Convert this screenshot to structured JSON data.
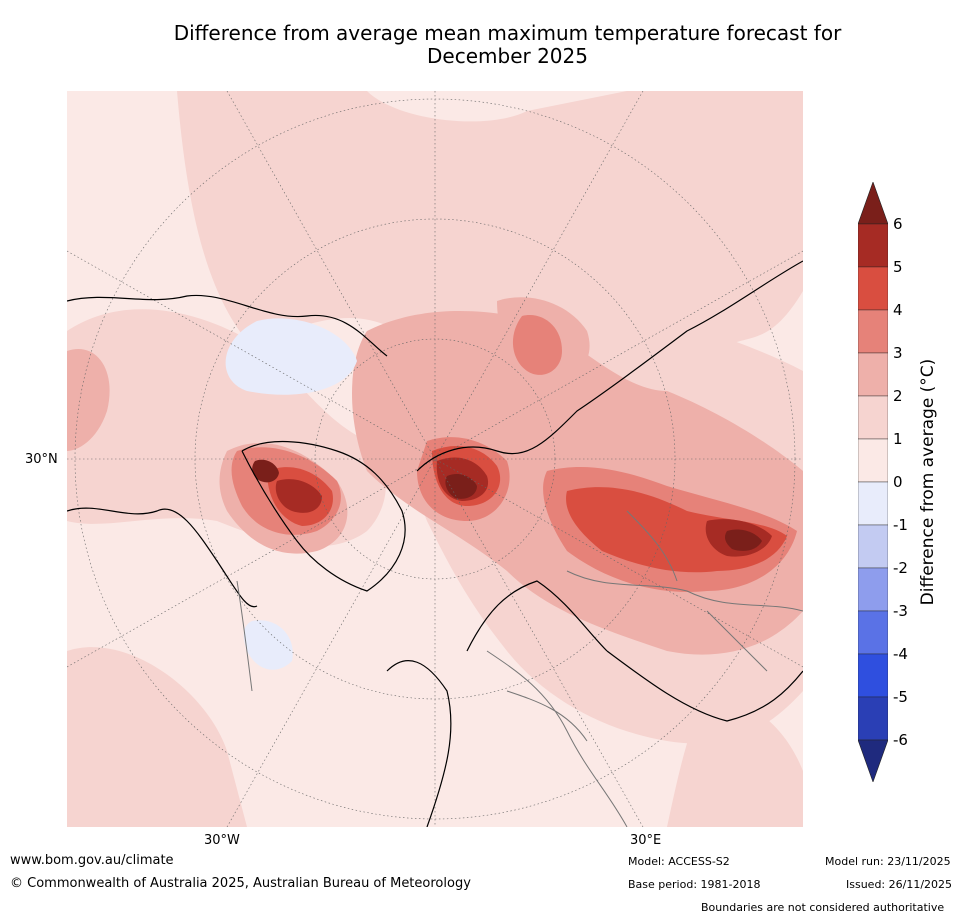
{
  "title_line1": "Difference from average mean maximum temperature forecast for",
  "title_line2": "December 2025",
  "lat_labels": [
    "30°N"
  ],
  "lon_labels": [
    "30°W",
    "30°E"
  ],
  "colorbar": {
    "label": "Difference from average (°C)",
    "ticks": [
      "6",
      "5",
      "4",
      "3",
      "2",
      "1",
      "0",
      "-1",
      "-2",
      "-3",
      "-4",
      "-5",
      "-6"
    ],
    "colors": [
      "#7a1f1a",
      "#a62b24",
      "#d94e40",
      "#e68279",
      "#eeb0aa",
      "#f6d4d0",
      "#fbe9e6",
      "#e8ecfb",
      "#c3cbf2",
      "#8e9ded",
      "#5a72e6",
      "#2f4fdf",
      "#2a3fb5",
      "#1f2a7e"
    ]
  },
  "footer": {
    "url": "www.bom.gov.au/climate",
    "copyright": "© Commonwealth of Australia 2025, Australian Bureau of Meteorology",
    "model": "Model: ACCESS-S2",
    "base_period": "Base period: 1981-2018",
    "model_run": "Model run: 23/11/2025",
    "issued": "Issued: 26/11/2025",
    "boundaries": "Boundaries are not considered authoritative"
  }
}
